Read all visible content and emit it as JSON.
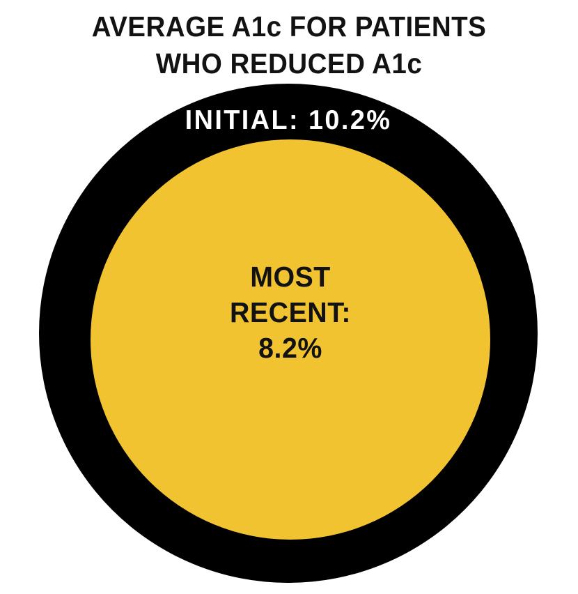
{
  "page": {
    "background_color": "#FFFFFF"
  },
  "title": {
    "line1": "AVERAGE A1c FOR PATIENTS",
    "line2": "WHO REDUCED A1c",
    "color": "#121212"
  },
  "outer_circle": {
    "label": "INITIAL: 10.2%",
    "fill_color": "#000000",
    "label_color": "#FFFFFF"
  },
  "inner_circle": {
    "label_line1": "MOST",
    "label_line2": "RECENT:",
    "label_line3": "8.2%",
    "fill_color": "#F2C331",
    "label_color": "#121212"
  },
  "chart_data": {
    "type": "pie",
    "variant": "concentric-circles",
    "title": "AVERAGE A1c FOR PATIENTS WHO REDUCED A1c",
    "legend": "none",
    "series": [
      {
        "name": "Initial",
        "label": "INITIAL: 10.2%",
        "value": 10.2,
        "unit": "%",
        "role": "outer-circle",
        "circle_color": "#000000",
        "label_color": "#FFFFFF"
      },
      {
        "name": "Most recent",
        "label": "MOST RECENT: 8.2%",
        "value": 8.2,
        "unit": "%",
        "role": "inner-circle",
        "circle_color": "#F2C331",
        "label_color": "#121212"
      }
    ],
    "annotations": [
      "INITIAL: 10.2%",
      "MOST RECENT: 8.2%"
    ]
  }
}
